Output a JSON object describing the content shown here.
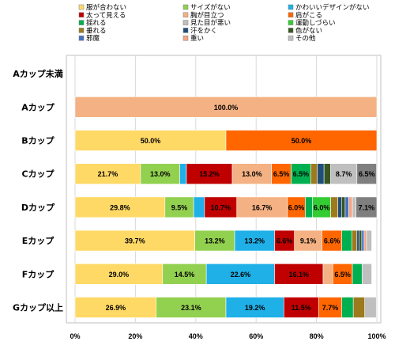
{
  "chart_data": {
    "type": "bar",
    "stacked": true,
    "orientation": "horizontal",
    "percent": true,
    "categories": [
      "Aカップ未満",
      "Aカップ",
      "Bカップ",
      "Cカップ",
      "Dカップ",
      "Eカップ",
      "Fカップ",
      "Gカップ以上"
    ],
    "xlim": [
      0,
      100
    ],
    "xticks": [
      "0%",
      "20%",
      "40%",
      "60%",
      "80%",
      "100%"
    ],
    "grid": "vertical",
    "legend_position": "top",
    "series": [
      {
        "name": "服が合わない",
        "color": "#FFD966",
        "values": [
          0,
          0,
          50.0,
          21.7,
          29.8,
          39.7,
          29.0,
          26.9
        ],
        "labels": [
          "",
          "",
          "50.0%",
          "21.7%",
          "29.8%",
          "39.7%",
          "29.0%",
          "26.9%"
        ]
      },
      {
        "name": "サイズがない",
        "color": "#92D050",
        "values": [
          0,
          0,
          0,
          13.0,
          9.5,
          13.2,
          14.5,
          23.1
        ],
        "labels": [
          "",
          "",
          "",
          "13.0%",
          "9.5%",
          "13.2%",
          "14.5%",
          "23.1%"
        ]
      },
      {
        "name": "かわいいデザインがない",
        "color": "#1FB0E8",
        "values": [
          0,
          0,
          0,
          2.2,
          3.6,
          13.2,
          22.6,
          19.2
        ],
        "labels": [
          "",
          "",
          "",
          "",
          "",
          "13.2%",
          "22.6%",
          "19.2%"
        ]
      },
      {
        "name": "太って見える",
        "color": "#C00000",
        "values": [
          0,
          0,
          0,
          15.2,
          10.7,
          6.6,
          16.1,
          11.5
        ],
        "labels": [
          "",
          "",
          "",
          "15.2%",
          "10.7%",
          "6.6%",
          "16.1%",
          "11.5%"
        ]
      },
      {
        "name": "胸が目立つ",
        "color": "#F4B183",
        "values": [
          0,
          100.0,
          0,
          13.0,
          16.7,
          9.1,
          3.2,
          0
        ],
        "labels": [
          "",
          "100.0%",
          "",
          "13.0%",
          "16.7%",
          "9.1%",
          "",
          ""
        ]
      },
      {
        "name": "肩がこる",
        "color": "#FF6600",
        "values": [
          0,
          0,
          50.0,
          6.5,
          6.0,
          6.6,
          6.5,
          7.7
        ],
        "labels": [
          "",
          "",
          "50.0%",
          "6.5%",
          "6.0%",
          "6.6%",
          "6.5%",
          "7.7%"
        ]
      },
      {
        "name": "揺れる",
        "color": "#00B050",
        "values": [
          0,
          0,
          0,
          6.5,
          2.4,
          3.3,
          3.2,
          3.8
        ],
        "labels": [
          "",
          "",
          "",
          "6.5%",
          "",
          "",
          "",
          ""
        ]
      },
      {
        "name": "見た目が悪い",
        "color": "#BFBFBF",
        "values": [
          0,
          0,
          0,
          0,
          0,
          0,
          0,
          0
        ],
        "labels": [
          "",
          "",
          "",
          "",
          "",
          "",
          "",
          ""
        ]
      },
      {
        "name": "運動しづらい",
        "color": "#33CC33",
        "values": [
          0,
          0,
          0,
          0,
          6.0,
          0,
          0,
          0
        ],
        "labels": [
          "",
          "",
          "",
          "",
          "6.0%",
          "",
          "",
          ""
        ]
      },
      {
        "name": "垂れる",
        "color": "#9C7A1E",
        "values": [
          0,
          0,
          0,
          2.2,
          2.4,
          1.7,
          0,
          3.8
        ],
        "labels": [
          "",
          "",
          "",
          "",
          "",
          "",
          "",
          ""
        ]
      },
      {
        "name": "汗をかく",
        "color": "#1F4E79",
        "values": [
          0,
          0,
          0,
          2.2,
          1.2,
          0.8,
          0,
          0
        ],
        "labels": [
          "",
          "",
          "",
          "",
          "",
          "",
          "",
          ""
        ]
      },
      {
        "name": "色がない",
        "color": "#375623",
        "values": [
          0,
          0,
          0,
          2.2,
          1.2,
          0.8,
          0,
          0
        ],
        "labels": [
          "",
          "",
          "",
          "",
          "",
          "",
          "",
          ""
        ]
      },
      {
        "name": "邪魔",
        "color": "#4472C4",
        "values": [
          0,
          0,
          0,
          0,
          1.2,
          0.8,
          0,
          0
        ],
        "labels": [
          "",
          "",
          "",
          "",
          "",
          "",
          "",
          ""
        ]
      },
      {
        "name": "重い",
        "color": "#F4A582",
        "values": [
          0,
          0,
          0,
          0,
          1.2,
          0.8,
          0,
          0
        ],
        "labels": [
          "",
          "",
          "",
          "",
          "",
          "",
          "",
          ""
        ]
      },
      {
        "name": "その他",
        "color": "#BFBFBF",
        "values": [
          0,
          0,
          0,
          8.7,
          1.2,
          1.7,
          3.2,
          3.8
        ],
        "labels": [
          "",
          "",
          "",
          "8.7%",
          "",
          "",
          "",
          ""
        ]
      },
      {
        "name": "",
        "color": "#7F7F7F",
        "values": [
          0,
          0,
          0,
          6.5,
          7.1,
          0,
          0,
          0
        ],
        "labels": [
          "",
          "",
          "",
          "6.5%",
          "7.1%",
          "",
          "",
          ""
        ]
      }
    ]
  }
}
